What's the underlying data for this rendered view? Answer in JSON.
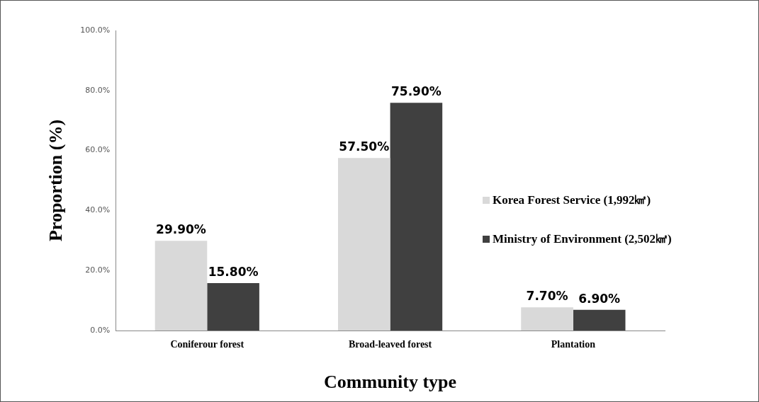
{
  "chart_data": {
    "type": "bar",
    "xlabel": "Community type",
    "ylabel": "Proportion (%)",
    "categories": [
      "Coniferour forest",
      "Broad-leaved forest",
      "Plantation"
    ],
    "series": [
      {
        "name": "Korea Forest Service (1,992㎢)",
        "color": "#d9d9d9",
        "values": [
          29.9,
          57.5,
          7.7
        ],
        "value_labels": [
          "29.90%",
          "57.50%",
          "7.70%"
        ]
      },
      {
        "name": "Ministry of Environment (2,502㎢)",
        "color": "#404040",
        "values": [
          15.8,
          75.9,
          6.9
        ],
        "value_labels": [
          "15.80%",
          "75.90%",
          "6.90%"
        ]
      }
    ],
    "ylim": [
      0,
      100
    ],
    "yticks": [
      {
        "value": 0,
        "label": "0.0%"
      },
      {
        "value": 20,
        "label": "20.0%"
      },
      {
        "value": 40,
        "label": "40.0%"
      },
      {
        "value": 60,
        "label": "60.0%"
      },
      {
        "value": 80,
        "label": "80.0%"
      },
      {
        "value": 100,
        "label": "100.0%"
      }
    ],
    "grid": false,
    "legend": "right"
  }
}
